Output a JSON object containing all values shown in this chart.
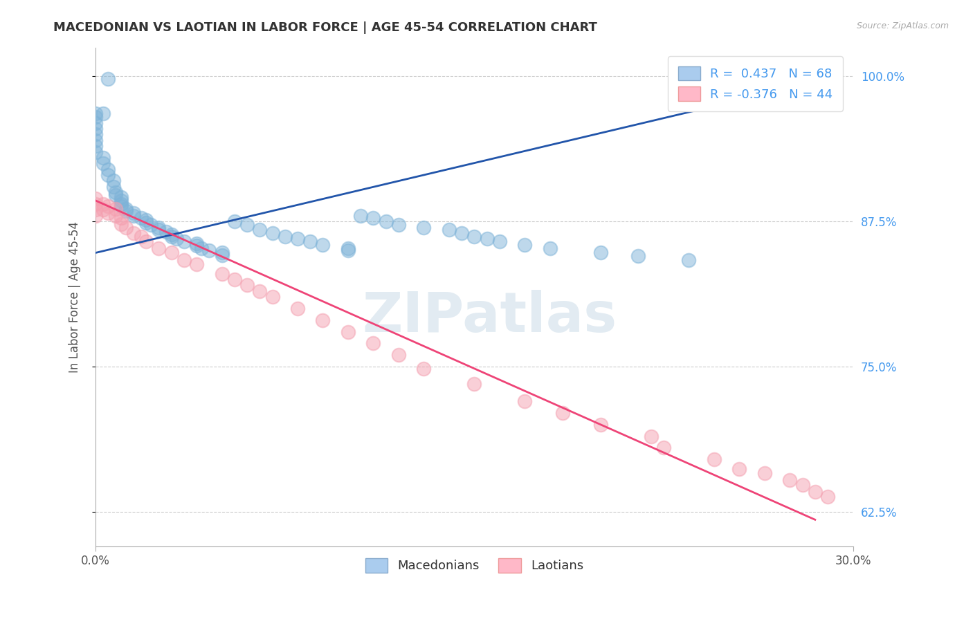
{
  "title": "MACEDONIAN VS LAOTIAN IN LABOR FORCE | AGE 45-54 CORRELATION CHART",
  "source_text": "Source: ZipAtlas.com",
  "ylabel": "In Labor Force | Age 45-54",
  "xlim": [
    0.0,
    0.3
  ],
  "ylim": [
    0.595,
    1.025
  ],
  "ytick_labels_right": [
    "62.5%",
    "75.0%",
    "87.5%",
    "100.0%"
  ],
  "ytick_vals_right": [
    0.625,
    0.75,
    0.875,
    1.0
  ],
  "blue_color": "#7EB3D8",
  "pink_color": "#F4A0B0",
  "blue_R": 0.437,
  "blue_N": 68,
  "pink_R": -0.376,
  "pink_N": 44,
  "blue_line_x": [
    0.0,
    0.285
  ],
  "blue_line_y": [
    0.848,
    0.995
  ],
  "pink_line_x": [
    0.0,
    0.285
  ],
  "pink_line_y": [
    0.893,
    0.618
  ],
  "watermark": "ZIPatlas",
  "background_color": "#FFFFFF",
  "legend_Macedonians": "Macedonians",
  "legend_Laotians": "Laotians",
  "blue_scatter_x": [
    0.005,
    0.003,
    0.0,
    0.0,
    0.0,
    0.0,
    0.0,
    0.0,
    0.0,
    0.0,
    0.003,
    0.003,
    0.005,
    0.005,
    0.007,
    0.007,
    0.008,
    0.008,
    0.01,
    0.01,
    0.01,
    0.01,
    0.012,
    0.012,
    0.015,
    0.015,
    0.018,
    0.02,
    0.02,
    0.022,
    0.025,
    0.025,
    0.028,
    0.03,
    0.03,
    0.032,
    0.035,
    0.04,
    0.04,
    0.042,
    0.045,
    0.05,
    0.05,
    0.055,
    0.06,
    0.065,
    0.07,
    0.075,
    0.08,
    0.085,
    0.09,
    0.1,
    0.1,
    0.105,
    0.11,
    0.115,
    0.12,
    0.13,
    0.14,
    0.145,
    0.15,
    0.155,
    0.16,
    0.17,
    0.18,
    0.2,
    0.215,
    0.235
  ],
  "blue_scatter_y": [
    0.998,
    0.968,
    0.968,
    0.965,
    0.96,
    0.955,
    0.95,
    0.945,
    0.94,
    0.935,
    0.93,
    0.925,
    0.92,
    0.915,
    0.91,
    0.905,
    0.9,
    0.898,
    0.896,
    0.893,
    0.89,
    0.888,
    0.886,
    0.884,
    0.882,
    0.88,
    0.878,
    0.876,
    0.874,
    0.872,
    0.87,
    0.868,
    0.866,
    0.864,
    0.862,
    0.86,
    0.858,
    0.856,
    0.854,
    0.852,
    0.85,
    0.848,
    0.846,
    0.875,
    0.872,
    0.868,
    0.865,
    0.862,
    0.86,
    0.858,
    0.855,
    0.852,
    0.85,
    0.88,
    0.878,
    0.875,
    0.872,
    0.87,
    0.868,
    0.865,
    0.862,
    0.86,
    0.858,
    0.855,
    0.852,
    0.848,
    0.845,
    0.842
  ],
  "pink_scatter_x": [
    0.0,
    0.0,
    0.0,
    0.0,
    0.003,
    0.003,
    0.005,
    0.005,
    0.008,
    0.008,
    0.01,
    0.01,
    0.012,
    0.015,
    0.018,
    0.02,
    0.025,
    0.03,
    0.035,
    0.04,
    0.05,
    0.055,
    0.06,
    0.065,
    0.07,
    0.08,
    0.09,
    0.1,
    0.11,
    0.12,
    0.13,
    0.15,
    0.17,
    0.185,
    0.2,
    0.22,
    0.225,
    0.245,
    0.255,
    0.265,
    0.275,
    0.28,
    0.285,
    0.29
  ],
  "pink_scatter_y": [
    0.895,
    0.89,
    0.885,
    0.88,
    0.89,
    0.885,
    0.888,
    0.882,
    0.886,
    0.88,
    0.878,
    0.873,
    0.87,
    0.865,
    0.862,
    0.858,
    0.852,
    0.848,
    0.842,
    0.838,
    0.83,
    0.825,
    0.82,
    0.815,
    0.81,
    0.8,
    0.79,
    0.78,
    0.77,
    0.76,
    0.748,
    0.735,
    0.72,
    0.71,
    0.7,
    0.69,
    0.68,
    0.67,
    0.662,
    0.658,
    0.652,
    0.648,
    0.642,
    0.638
  ]
}
